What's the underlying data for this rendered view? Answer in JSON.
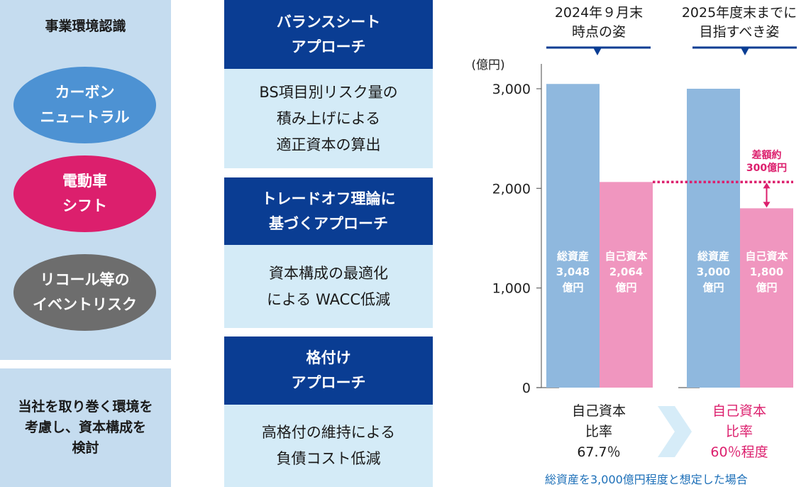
{
  "left": {
    "title": "事業環境認識",
    "pills": [
      {
        "lines": [
          "カーボン",
          "ニュートラル"
        ],
        "color": "#4d92d3"
      },
      {
        "lines": [
          "電動車",
          "シフト"
        ],
        "color": "#dc1f6d"
      },
      {
        "lines": [
          "リコール等の",
          "イベントリスク"
        ],
        "color": "#6d6d6d"
      }
    ],
    "bottom_lines": [
      "当社を取り巻く環境を",
      "考慮し、資本構成を",
      "検討"
    ]
  },
  "approaches": [
    {
      "title_lines": [
        "バランスシート",
        "アプローチ"
      ],
      "body_lines": [
        "BS項目別リスク量の",
        "積み上げによる",
        "適正資本の算出"
      ]
    },
    {
      "title_lines": [
        "トレードオフ理論に",
        "基づくアプローチ"
      ],
      "body_lines": [
        "資本構成の最適化",
        "による WACC低減"
      ]
    },
    {
      "title_lines": [
        "格付け",
        "アプローチ"
      ],
      "body_lines": [
        "高格付の維持による",
        "負債コスト低減"
      ]
    }
  ],
  "chart_data": {
    "type": "bar",
    "ylabel": "(億円)",
    "ylim": [
      0,
      3000
    ],
    "yticks": [
      "3,000",
      "2,000",
      "1,000",
      "0"
    ],
    "ytick_values": [
      3000,
      2000,
      1000,
      0
    ],
    "groups": [
      {
        "header_lines": [
          "2024年９月末",
          "時点の姿"
        ],
        "bars": [
          {
            "label_lines": [
              "総資産",
              "3,048",
              "億円"
            ],
            "value": 3048,
            "color": "#8fb8de"
          },
          {
            "label_lines": [
              "自己資本",
              "2,064",
              "億円"
            ],
            "value": 2064,
            "color": "#f096bf"
          }
        ],
        "ratio_lines": [
          "自己資本",
          "比率",
          "67.7％"
        ],
        "ratio_color": "#1a1a1a"
      },
      {
        "header_lines": [
          "2025年度末までに",
          "目指すべき姿"
        ],
        "bars": [
          {
            "label_lines": [
              "総資産",
              "3,000",
              "億円"
            ],
            "value": 3000,
            "color": "#8fb8de"
          },
          {
            "label_lines": [
              "自己資本",
              "1,800",
              "億円"
            ],
            "value": 1800,
            "color": "#f096bf"
          }
        ],
        "ratio_lines": [
          "自己資本",
          "比率",
          "60％程度"
        ],
        "ratio_color": "#dc1f6d"
      }
    ],
    "reference_value": 2064,
    "annotation_lines": [
      "差額約",
      "300億円"
    ],
    "annotation_color": "#dc1f6d",
    "footnote": "総資産を3,000億円程度と想定した場合"
  }
}
